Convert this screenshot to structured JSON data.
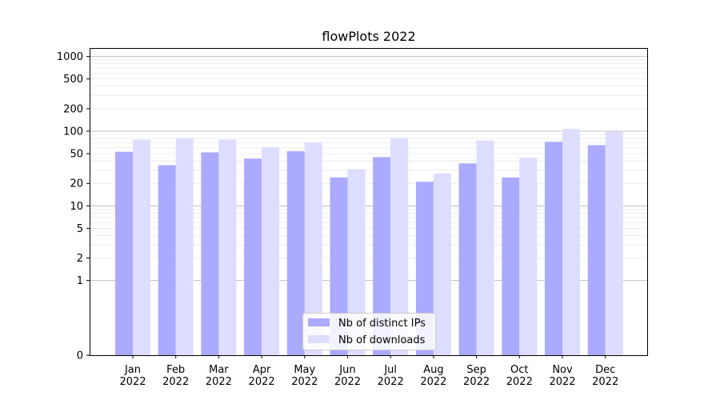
{
  "chart_data": {
    "type": "bar",
    "title": "flowPlots 2022",
    "xlabel": "",
    "ylabel": "",
    "yscale": "symlog",
    "ylim": [
      0,
      1300
    ],
    "yticks": [
      0,
      1,
      2,
      5,
      10,
      20,
      50,
      100,
      200,
      500,
      1000
    ],
    "ytick_labels": [
      "0",
      "1",
      "2",
      "5",
      "10",
      "20",
      "50",
      "100",
      "200",
      "500",
      "1000"
    ],
    "grid": true,
    "legend_position": "lower-center",
    "categories": [
      "Jan 2022",
      "Feb 2022",
      "Mar 2022",
      "Apr 2022",
      "May 2022",
      "Jun 2022",
      "Jul 2022",
      "Aug 2022",
      "Sep 2022",
      "Oct 2022",
      "Nov 2022",
      "Dec 2022"
    ],
    "category_lines": [
      [
        "Jan",
        "2022"
      ],
      [
        "Feb",
        "2022"
      ],
      [
        "Mar",
        "2022"
      ],
      [
        "Apr",
        "2022"
      ],
      [
        "May",
        "2022"
      ],
      [
        "Jun",
        "2022"
      ],
      [
        "Jul",
        "2022"
      ],
      [
        "Aug",
        "2022"
      ],
      [
        "Sep",
        "2022"
      ],
      [
        "Oct",
        "2022"
      ],
      [
        "Nov",
        "2022"
      ],
      [
        "Dec",
        "2022"
      ]
    ],
    "series": [
      {
        "name": "Nb of distinct IPs",
        "color": "#aaaaff",
        "values": [
          53,
          35,
          52,
          43,
          54,
          24,
          45,
          21,
          37,
          24,
          72,
          65
        ]
      },
      {
        "name": "Nb of downloads",
        "color": "#ddddff",
        "values": [
          77,
          80,
          77,
          61,
          71,
          31,
          81,
          27,
          75,
          44,
          107,
          99
        ]
      }
    ]
  }
}
